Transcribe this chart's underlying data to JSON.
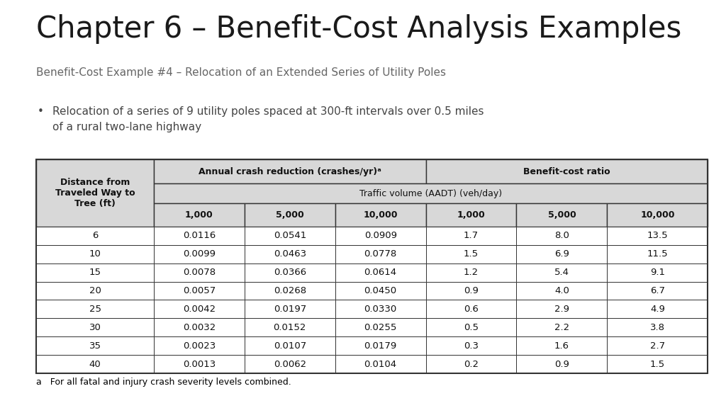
{
  "title": "Chapter 6 – Benefit-Cost Analysis Examples",
  "subtitle": "Benefit-Cost Example #4 – Relocation of an Extended Series of Utility Poles",
  "bullet_text": "Relocation of a series of 9 utility poles spaced at 300-ft intervals over 0.5 miles\nof a rural two-lane highway",
  "footnote": "a   For all fatal and injury crash severity levels combined.",
  "header_col0": "Distance from\nTraveled Way to\nTree (ft)",
  "header_acr": "Annual crash reduction (crashes/yr)ᵃ",
  "header_bcr": "Benefit-cost ratio",
  "subheader": "Traffic volume (AADT) (veh/day)",
  "traffic_volumes": [
    "1,000",
    "5,000",
    "10,000",
    "1,000",
    "5,000",
    "10,000"
  ],
  "distances": [
    "6",
    "10",
    "15",
    "20",
    "25",
    "30",
    "35",
    "40"
  ],
  "crash_reduction": [
    [
      "0.0116",
      "0.0541",
      "0.0909"
    ],
    [
      "0.0099",
      "0.0463",
      "0.0778"
    ],
    [
      "0.0078",
      "0.0366",
      "0.0614"
    ],
    [
      "0.0057",
      "0.0268",
      "0.0450"
    ],
    [
      "0.0042",
      "0.0197",
      "0.0330"
    ],
    [
      "0.0032",
      "0.0152",
      "0.0255"
    ],
    [
      "0.0023",
      "0.0107",
      "0.0179"
    ],
    [
      "0.0013",
      "0.0062",
      "0.0104"
    ]
  ],
  "bc_ratio": [
    [
      "1.7",
      "8.0",
      "13.5"
    ],
    [
      "1.5",
      "6.9",
      "11.5"
    ],
    [
      "1.2",
      "5.4",
      "9.1"
    ],
    [
      "0.9",
      "4.0",
      "6.7"
    ],
    [
      "0.6",
      "2.9",
      "4.9"
    ],
    [
      "0.5",
      "2.2",
      "3.8"
    ],
    [
      "0.3",
      "1.6",
      "2.7"
    ],
    [
      "0.2",
      "0.9",
      "1.5"
    ]
  ],
  "bg_color": "#ffffff",
  "text_color": "#000000",
  "title_color": "#1a1a1a",
  "subtitle_color": "#666666",
  "bullet_color": "#444444",
  "header_bg": "#d8d8d8",
  "data_row_bg": "#ffffff",
  "border_color": "#333333"
}
